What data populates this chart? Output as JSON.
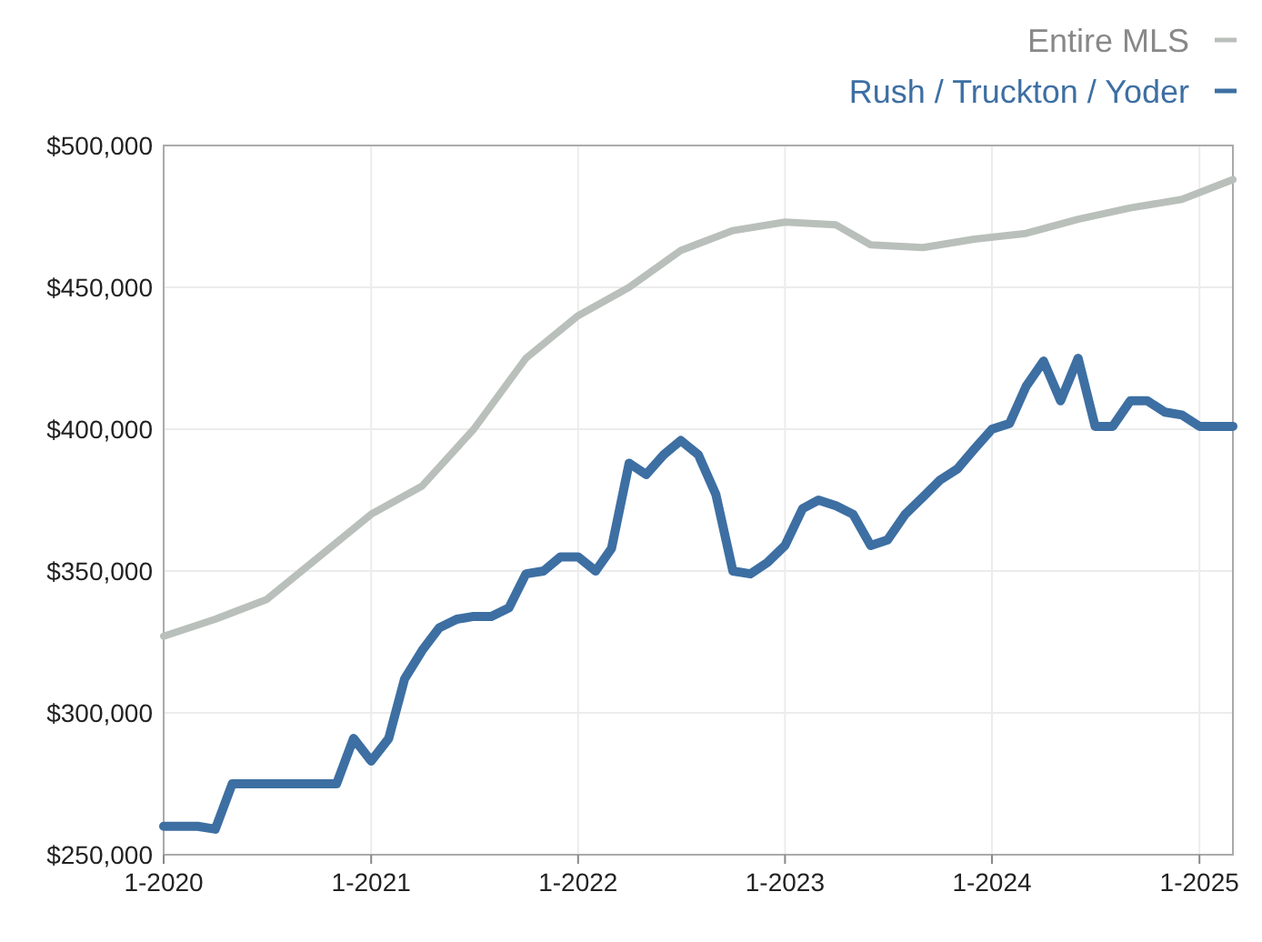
{
  "chart_data": {
    "type": "line",
    "legend": "top right",
    "grid": true,
    "line_style": "solid",
    "marker": "none",
    "xlim": [
      "2020-01",
      "2025-03"
    ],
    "xticks": [
      {
        "value": "2020-01",
        "label": "1-2020"
      },
      {
        "value": "2021-01",
        "label": "1-2021"
      },
      {
        "value": "2022-01",
        "label": "1-2022"
      },
      {
        "value": "2023-01",
        "label": "1-2023"
      },
      {
        "value": "2024-01",
        "label": "1-2024"
      },
      {
        "value": "2025-01",
        "label": "1-2025"
      }
    ],
    "ylim": [
      250000,
      500000
    ],
    "yticks": [
      {
        "value": 250000,
        "label": "$250,000"
      },
      {
        "value": 300000,
        "label": "$300,000"
      },
      {
        "value": 350000,
        "label": "$350,000"
      },
      {
        "value": 400000,
        "label": "$400,000"
      },
      {
        "value": 450000,
        "label": "$450,000"
      },
      {
        "value": 500000,
        "label": "$500,000"
      }
    ],
    "series": [
      {
        "name": "Entire MLS",
        "color": "#b9bfba",
        "x": [
          "2020-01",
          "2020-04",
          "2020-07",
          "2020-10",
          "2021-01",
          "2021-04",
          "2021-07",
          "2021-10",
          "2022-01",
          "2022-04",
          "2022-07",
          "2022-10",
          "2023-01",
          "2023-04",
          "2023-06",
          "2023-09",
          "2023-12",
          "2024-03",
          "2024-06",
          "2024-09",
          "2024-12",
          "2025-03"
        ],
        "values": [
          327000,
          333000,
          340000,
          355000,
          370000,
          380000,
          400000,
          425000,
          440000,
          450000,
          463000,
          470000,
          473000,
          472000,
          465000,
          464000,
          467000,
          469000,
          474000,
          478000,
          481000,
          488000
        ]
      },
      {
        "name": "Rush / Truckton / Yoder",
        "color": "#3d6fa3",
        "x": [
          "2020-01",
          "2020-03",
          "2020-04",
          "2020-05",
          "2020-11",
          "2020-12",
          "2021-01",
          "2021-02",
          "2021-03",
          "2021-04",
          "2021-05",
          "2021-06",
          "2021-07",
          "2021-08",
          "2021-09",
          "2021-10",
          "2021-11",
          "2021-12",
          "2022-01",
          "2022-02",
          "2022-03",
          "2022-04",
          "2022-05",
          "2022-06",
          "2022-07",
          "2022-08",
          "2022-09",
          "2022-10",
          "2022-11",
          "2022-12",
          "2023-01",
          "2023-02",
          "2023-03",
          "2023-04",
          "2023-05",
          "2023-06",
          "2023-07",
          "2023-08",
          "2023-09",
          "2023-10",
          "2023-11",
          "2023-12",
          "2024-01",
          "2024-02",
          "2024-03",
          "2024-04",
          "2024-05",
          "2024-06",
          "2024-07",
          "2024-08",
          "2024-09",
          "2024-10",
          "2024-11",
          "2024-12",
          "2025-01",
          "2025-02",
          "2025-03"
        ],
        "values": [
          260000,
          260000,
          259000,
          275000,
          275000,
          291000,
          283000,
          291000,
          312000,
          322000,
          330000,
          333000,
          334000,
          334000,
          337000,
          349000,
          350000,
          355000,
          355000,
          350000,
          358000,
          388000,
          384000,
          391000,
          396000,
          391000,
          377000,
          350000,
          349000,
          353000,
          359000,
          372000,
          375000,
          373000,
          370000,
          359000,
          361000,
          370000,
          376000,
          382000,
          386000,
          393000,
          400000,
          402000,
          415000,
          424000,
          410000,
          425000,
          401000,
          401000,
          410000,
          410000,
          406000,
          405000,
          401000,
          401000,
          401000
        ]
      }
    ]
  }
}
